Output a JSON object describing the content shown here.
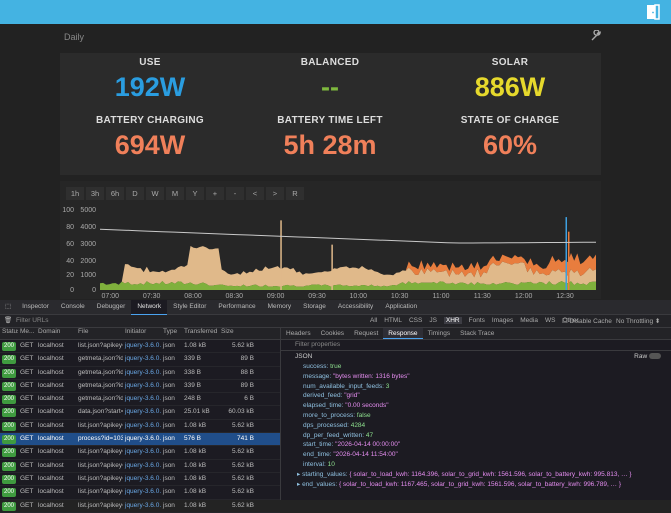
{
  "panel": {
    "title": "Daily"
  },
  "stats": [
    {
      "label": "USE",
      "value": "192W",
      "color": "#2a9de0"
    },
    {
      "label": "BALANCED",
      "value": "--",
      "color": "#7eb83e"
    },
    {
      "label": "SOLAR",
      "value": "886W",
      "color": "#e6d92c"
    },
    {
      "label": "BATTERY CHARGING",
      "value": "694W",
      "color": "#f0805a"
    },
    {
      "label": "BATTERY TIME LEFT",
      "value": "5h 28m",
      "color": "#f0805a"
    },
    {
      "label": "STATE OF CHARGE",
      "value": "60%",
      "color": "#f0805a"
    }
  ],
  "chart_controls": [
    "1h",
    "3h",
    "6h",
    "D",
    "W",
    "M",
    "Y",
    "+",
    "-",
    "<",
    ">",
    "R"
  ],
  "chart_data": {
    "type": "area",
    "x_ticks": [
      "07:00",
      "07:30",
      "08:00",
      "08:30",
      "09:00",
      "09:30",
      "10:00",
      "10:30",
      "11:00",
      "11:30",
      "12:00",
      "12:30"
    ],
    "y_left_ticks": [
      "100",
      "80",
      "60",
      "40",
      "20",
      "0"
    ],
    "y_right_ticks": [
      "5000",
      "4000",
      "3000",
      "2000",
      "1000",
      "0"
    ],
    "soc_line": {
      "start": 75,
      "end": 58
    },
    "series_colors": {
      "solar": "#e0b98a",
      "grid": "#7fb03c",
      "battery": "#e87d3e",
      "use": "#3ea0e0",
      "soc": "#c8c8c8"
    }
  },
  "devtools": {
    "tabs": [
      "Inspector",
      "Console",
      "Debugger",
      "Network",
      "Style Editor",
      "Performance",
      "Memory",
      "Storage",
      "Accessibility",
      "Application"
    ],
    "filter_urls": "Filter URLs",
    "filter_types": [
      "All",
      "HTML",
      "CSS",
      "JS",
      "XHR",
      "Fonts",
      "Images",
      "Media",
      "WS",
      "Other"
    ],
    "disable_cache": "Disable Cache",
    "throttling": "No Throttling ⬍",
    "columns": [
      "Status",
      "Me...",
      "Domain",
      "File",
      "Initiator",
      "Type",
      "Transferred",
      "Size"
    ],
    "rows": [
      {
        "status": "200",
        "method": "GET",
        "domain": "localhost",
        "file": "list.json?apikey=bf",
        "initiator": "jquery-3.6.0...",
        "type": "json",
        "transferred": "1.08 kB",
        "size": "5.62 kB",
        "selected": false
      },
      {
        "status": "200",
        "method": "GET",
        "domain": "localhost",
        "file": "getmeta.json?id=1",
        "initiator": "jquery-3.6.0...",
        "type": "json",
        "transferred": "339 B",
        "size": "89 B",
        "selected": false
      },
      {
        "status": "200",
        "method": "GET",
        "domain": "localhost",
        "file": "getmeta.json?id=1",
        "initiator": "jquery-3.6.0...",
        "type": "json",
        "transferred": "338 B",
        "size": "88 B",
        "selected": false
      },
      {
        "status": "200",
        "method": "GET",
        "domain": "localhost",
        "file": "getmeta.json?id=1",
        "initiator": "jquery-3.6.0...",
        "type": "json",
        "transferred": "339 B",
        "size": "89 B",
        "selected": false
      },
      {
        "status": "200",
        "method": "GET",
        "domain": "localhost",
        "file": "getmeta.json?id=c",
        "initiator": "jquery-3.6.0...",
        "type": "json",
        "transferred": "248 B",
        "size": "6 B",
        "selected": false
      },
      {
        "status": "200",
        "method": "GET",
        "domain": "localhost",
        "file": "data.json?start=1",
        "initiator": "jquery-3.6.0...",
        "type": "json",
        "transferred": "25.01 kB",
        "size": "60.03 kB",
        "selected": false
      },
      {
        "status": "200",
        "method": "GET",
        "domain": "localhost",
        "file": "list.json?apikey=bf",
        "initiator": "jquery-3.6.0...",
        "type": "json",
        "transferred": "1.08 kB",
        "size": "5.62 kB",
        "selected": false
      },
      {
        "status": "200",
        "method": "GET",
        "domain": "localhost",
        "file": "process?id=1036&",
        "initiator": "jquery-3.6.0...",
        "type": "json",
        "transferred": "576 B",
        "size": "741 B",
        "selected": true
      },
      {
        "status": "200",
        "method": "GET",
        "domain": "localhost",
        "file": "list.json?apikey=bf",
        "initiator": "jquery-3.6.0...",
        "type": "json",
        "transferred": "1.08 kB",
        "size": "5.62 kB",
        "selected": false
      },
      {
        "status": "200",
        "method": "GET",
        "domain": "localhost",
        "file": "list.json?apikey=bf",
        "initiator": "jquery-3.6.0...",
        "type": "json",
        "transferred": "1.08 kB",
        "size": "5.62 kB",
        "selected": false
      },
      {
        "status": "200",
        "method": "GET",
        "domain": "localhost",
        "file": "list.json?apikey=bf",
        "initiator": "jquery-3.6.0...",
        "type": "json",
        "transferred": "1.08 kB",
        "size": "5.62 kB",
        "selected": false
      },
      {
        "status": "200",
        "method": "GET",
        "domain": "localhost",
        "file": "list.json?apikey=bf",
        "initiator": "jquery-3.6.0...",
        "type": "json",
        "transferred": "1.08 kB",
        "size": "5.62 kB",
        "selected": false
      },
      {
        "status": "200",
        "method": "GET",
        "domain": "localhost",
        "file": "list.json?apikey=bf",
        "initiator": "jquery-3.6.0...",
        "type": "json",
        "transferred": "1.08 kB",
        "size": "5.62 kB",
        "selected": false
      }
    ],
    "detail_tabs": [
      "Headers",
      "Cookies",
      "Request",
      "Response",
      "Timings",
      "Stack Trace"
    ],
    "active_detail_tab": "Response",
    "filter_properties": "Filter properties",
    "json_label": "JSON",
    "raw_label": "Raw",
    "json_lines": [
      {
        "key": "success:",
        "value": "true",
        "kind": "n"
      },
      {
        "key": "message:",
        "value": "\"bytes written: 1316 bytes\"",
        "kind": "s"
      },
      {
        "key": "num_available_input_feeds:",
        "value": "3",
        "kind": "n"
      },
      {
        "key": "derived_feed:",
        "value": "\"grid\"",
        "kind": "s"
      },
      {
        "key": "elapsed_time:",
        "value": "\"0.00 seconds\"",
        "kind": "s"
      },
      {
        "key": "more_to_process:",
        "value": "false",
        "kind": "n"
      },
      {
        "key": "dps_processed:",
        "value": "4284",
        "kind": "n"
      },
      {
        "key": "dp_per_feed_written:",
        "value": "47",
        "kind": "n"
      },
      {
        "key": "start_time:",
        "value": "\"2026-04-14 00:00:00\"",
        "kind": "s"
      },
      {
        "key": "end_time:",
        "value": "\"2026-04-14 11:54:00\"",
        "kind": "s"
      },
      {
        "key": "interval:",
        "value": "10",
        "kind": "n"
      },
      {
        "key": "▸ starting_values:",
        "value": "{ solar_to_load_kwh: 1164.396, solar_to_grid_kwh: 1561.596, solar_to_battery_kwh: 995.813, … }",
        "kind": "s"
      },
      {
        "key": "▸ end_values:",
        "value": "{ solar_to_load_kwh: 1167.465, solar_to_grid_kwh: 1561.596, solar_to_battery_kwh: 996.789, … }",
        "kind": "s"
      }
    ]
  }
}
